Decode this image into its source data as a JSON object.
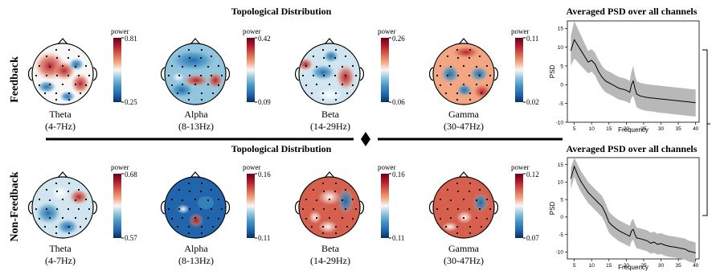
{
  "rows": [
    {
      "label": "Feedback",
      "section_title": "Topological Distribution",
      "maps": [
        {
          "band": "Theta",
          "range": "(4-7Hz)",
          "cbar_label": "power",
          "max": "0.81",
          "min": "0.25"
        },
        {
          "band": "Alpha",
          "range": "(8-13Hz)",
          "cbar_label": "power",
          "max": "0.42",
          "min": "0.09"
        },
        {
          "band": "Beta",
          "range": "(14-29Hz)",
          "cbar_label": "power",
          "max": "0.26",
          "min": "0.06"
        },
        {
          "band": "Gamma",
          "range": "(30-47Hz)",
          "cbar_label": "power",
          "max": "0.11",
          "min": "0.02"
        }
      ]
    },
    {
      "label": "Non-Feedback",
      "section_title": "Topological Distribution",
      "maps": [
        {
          "band": "Theta",
          "range": "(4-7Hz)",
          "cbar_label": "power",
          "max": "0.68",
          "min": "0.57"
        },
        {
          "band": "Alpha",
          "range": "(8-13Hz)",
          "cbar_label": "power",
          "max": "0.16",
          "min": "0.11"
        },
        {
          "band": "Beta",
          "range": "(14-29Hz)",
          "cbar_label": "power",
          "max": "0.16",
          "min": "0.11"
        },
        {
          "band": "Gamma",
          "range": "(30-47Hz)",
          "cbar_label": "power",
          "max": "0.12",
          "min": "0.07"
        }
      ]
    }
  ],
  "colors": {
    "hot": "#b2182b",
    "cold": "#2166ac",
    "neutral": "#f7f7f7",
    "band": "#b8b8b8",
    "line": "#000000"
  },
  "chart_data": [
    {
      "type": "line",
      "title": "Averaged PSD over all channels",
      "xlabel": "Frequency",
      "ylabel": "PSD",
      "xlim": [
        3,
        41
      ],
      "ylim": [
        -10,
        17
      ],
      "xticks": [
        5,
        10,
        15,
        20,
        25,
        30,
        35,
        40
      ],
      "yticks": [
        -10,
        -5,
        0,
        5,
        10,
        15
      ],
      "x": [
        4,
        5,
        6,
        7,
        8,
        9,
        10,
        11,
        12,
        13,
        14,
        15,
        16,
        17,
        18,
        19,
        20,
        21,
        21.5,
        22,
        22.5,
        23,
        24,
        25,
        26,
        27,
        28,
        29,
        30,
        31,
        32,
        33,
        34,
        35,
        36,
        37,
        38,
        39,
        40
      ],
      "series": [
        {
          "values": [
            9,
            12,
            10.5,
            9,
            7.5,
            6,
            6.5,
            5.5,
            3.5,
            2,
            1,
            0.5,
            0,
            -0.5,
            -1,
            -1.2,
            -1.5,
            -2,
            0,
            1,
            -1,
            -2.5,
            -3,
            -3.2,
            -3.4,
            -3.5,
            -3.6,
            -3.7,
            -3.8,
            -3.9,
            -4,
            -4.1,
            -4.2,
            -4.3,
            -4.4,
            -4.5,
            -4.6,
            -4.7,
            -4.8
          ],
          "lower": [
            5,
            7,
            6,
            5,
            4,
            3,
            3.5,
            2.5,
            0.5,
            -1,
            -2,
            -2.5,
            -3,
            -3.5,
            -4,
            -4.2,
            -4.5,
            -5,
            -3.5,
            -3,
            -4.5,
            -6,
            -6.5,
            -6.8,
            -7,
            -7.1,
            -7.2,
            -7.4,
            -7.5,
            -7.6,
            -7.7,
            -7.8,
            -7.9,
            -8,
            -8.1,
            -8.2,
            -8.3,
            -8.4,
            -8.5
          ],
          "upper": [
            13,
            17,
            15,
            13,
            11,
            9,
            9.5,
            8.5,
            6.5,
            5,
            4,
            3.5,
            3,
            2.5,
            2,
            1.8,
            1.5,
            1,
            3.5,
            5,
            2.5,
            1,
            0.5,
            0.3,
            0.1,
            0,
            -0.1,
            -0.2,
            -0.3,
            -0.4,
            -0.5,
            -0.6,
            -0.7,
            -0.8,
            -0.9,
            -1,
            -1.1,
            -1.2,
            -1.3
          ]
        }
      ],
      "grid": false
    },
    {
      "type": "line",
      "title": "Averaged PSD over all channels",
      "xlabel": "Frequency",
      "ylabel": "PSD",
      "xlim": [
        3,
        41
      ],
      "ylim": [
        -12,
        17
      ],
      "xticks": [
        5,
        10,
        15,
        20,
        25,
        30,
        35,
        40
      ],
      "yticks": [
        -10,
        -5,
        0,
        5,
        10,
        15
      ],
      "x": [
        4,
        5,
        6,
        7,
        8,
        9,
        10,
        11,
        12,
        13,
        14,
        15,
        16,
        17,
        18,
        19,
        20,
        21,
        21.5,
        22,
        22.5,
        23,
        24,
        25,
        26,
        27,
        28,
        29,
        30,
        31,
        32,
        33,
        34,
        35,
        36,
        37,
        38,
        39,
        40
      ],
      "series": [
        {
          "values": [
            11,
            14.5,
            12,
            10,
            8.5,
            7,
            6,
            5,
            4,
            3,
            1,
            -1.5,
            -2.5,
            -3.3,
            -4,
            -4.5,
            -5,
            -5.5,
            -4,
            -3.5,
            -5,
            -6,
            -6.2,
            -6.5,
            -6.8,
            -7.5,
            -7.2,
            -7.8,
            -7.6,
            -8,
            -8.3,
            -8.5,
            -8.6,
            -8.8,
            -9,
            -9.2,
            -9.8,
            -10,
            -10.3
          ],
          "lower": [
            8,
            11.5,
            9,
            7,
            5.5,
            4,
            3,
            2,
            1,
            0,
            -2,
            -4.5,
            -5.5,
            -6.3,
            -7,
            -7.5,
            -8,
            -8.5,
            -7,
            -6.5,
            -8,
            -9,
            -9.2,
            -9.5,
            -9.8,
            -10.5,
            -10.2,
            -10.8,
            -10.6,
            -11,
            -11.3,
            -11.5,
            -11.6,
            -11.8,
            -12,
            -12.2,
            -12.8,
            -13,
            -13.3
          ],
          "upper": [
            14,
            17,
            15,
            13,
            11.5,
            10,
            9,
            8,
            7,
            6,
            4,
            1.5,
            0.5,
            -0.3,
            -1,
            -1.5,
            -2,
            -2.5,
            -1,
            -0.5,
            -2,
            -3,
            -3.2,
            -3.5,
            -3.8,
            -4.5,
            -4.2,
            -4.8,
            -4.6,
            -5,
            -5.3,
            -5.5,
            -5.6,
            -5.8,
            -6,
            -6.2,
            -6.8,
            -7,
            -7.3
          ]
        }
      ],
      "grid": false
    }
  ]
}
